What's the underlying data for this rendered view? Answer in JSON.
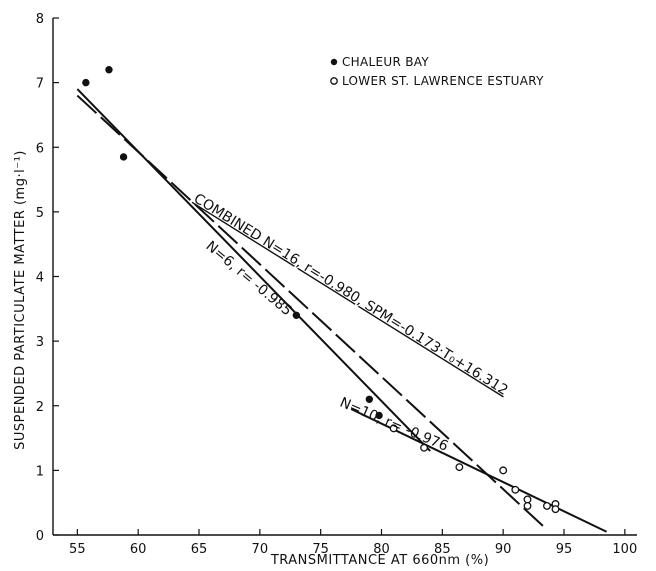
{
  "chart_data": {
    "type": "scatter",
    "xlabel": "TRANSMITTANCE AT 660nm (%)",
    "ylabel": "SUSPENDED PARTICULATE MATTER (mg·l⁻¹)",
    "xlim": [
      53,
      101
    ],
    "ylim": [
      0,
      8
    ],
    "xticks": [
      55,
      60,
      65,
      70,
      75,
      80,
      85,
      90,
      95,
      100
    ],
    "yticks": [
      0,
      1,
      2,
      3,
      4,
      5,
      6,
      7,
      8
    ],
    "grid": false,
    "legend_position": "top-right",
    "series": [
      {
        "name": "CHALEUR BAY",
        "marker": "filled-circle",
        "points": [
          [
            55.7,
            7.0
          ],
          [
            57.6,
            7.2
          ],
          [
            58.8,
            5.85
          ],
          [
            73.0,
            3.4
          ],
          [
            79.0,
            2.1
          ],
          [
            79.8,
            1.85
          ]
        ]
      },
      {
        "name": "LOWER ST. LAWRENCE ESTUARY",
        "marker": "open-circle",
        "points": [
          [
            81.0,
            1.65
          ],
          [
            83.5,
            1.35
          ],
          [
            86.4,
            1.05
          ],
          [
            90.0,
            1.0
          ],
          [
            91.0,
            0.7
          ],
          [
            92.0,
            0.55
          ],
          [
            92.0,
            0.45
          ],
          [
            93.6,
            0.45
          ],
          [
            94.3,
            0.48
          ],
          [
            94.3,
            0.4
          ]
        ]
      }
    ],
    "fit_lines": [
      {
        "id": "combined",
        "style": "long-dash",
        "x": [
          55,
          93.5
        ],
        "y": [
          6.8,
          0.1
        ]
      },
      {
        "id": "chaleur",
        "style": "solid",
        "x": [
          55,
          84
        ],
        "y": [
          6.9,
          1.3
        ]
      },
      {
        "id": "estuary",
        "style": "solid",
        "x": [
          77.5,
          98.5
        ],
        "y": [
          1.95,
          0.05
        ]
      }
    ],
    "annotations": [
      {
        "id": "combined",
        "text": "COMBINED N=16, r=-0.980, SPM=-0.173·T₀+16.312",
        "x": 64.5,
        "y": 5.17,
        "angle": 32,
        "underline": true
      },
      {
        "id": "chaleur",
        "text": "N=6, r= -0.985",
        "x": 65.5,
        "y": 4.45,
        "angle": 40
      },
      {
        "id": "estuary",
        "text": "N=10, r= -0.976",
        "x": 76.5,
        "y": 2.0,
        "angle": 23
      }
    ]
  }
}
